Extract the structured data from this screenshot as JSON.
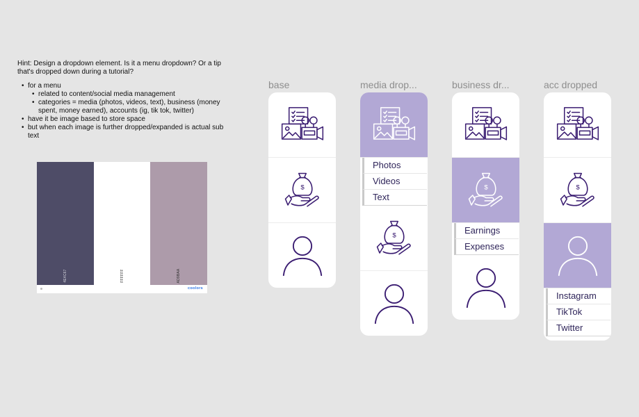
{
  "hint": {
    "intro": "Hint: Design a dropdown element. Is it a menu dropdown? Or a tip that's dropped down during a tutorial?",
    "bullet1": "for a menu",
    "sub1": "related to content/social media management",
    "sub2": "categories = media (photos, videos, text), business (money spent, money earned), accounts (ig, tik tok, twitter)",
    "bullet2": "have it be image based to store space",
    "bullet3": "but when each image is further dropped/expanded is actual sub text"
  },
  "palette": {
    "swatches": [
      {
        "hex": "4E4C67",
        "color": "#4e4c67"
      },
      {
        "hex": "FFFFFF",
        "color": "#ffffff"
      },
      {
        "hex": "AD9BAA",
        "color": "#ad9baa"
      }
    ],
    "brand": "coolors"
  },
  "colors": {
    "icon_stroke": "#3a1c71",
    "active_bg": "#b2a8d5",
    "active_icon": "#ffffff"
  },
  "columns": {
    "base": {
      "label": "base"
    },
    "media": {
      "label": "media drop...",
      "items": [
        "Photos",
        "Videos",
        "Text"
      ]
    },
    "business": {
      "label": "business dr...",
      "items": [
        "Earnings",
        "Expenses"
      ]
    },
    "accounts": {
      "label": "acc dropped",
      "items": [
        "Instagram",
        "TikTok",
        "Twitter"
      ]
    }
  },
  "icons": {
    "media": "media-content-icon",
    "money": "money-bag-hand-icon",
    "account": "user-account-icon"
  }
}
